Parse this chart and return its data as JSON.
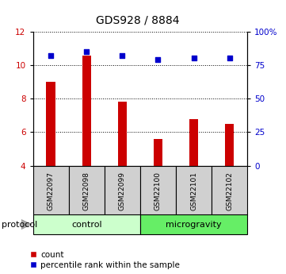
{
  "title": "GDS928 / 8884",
  "samples": [
    "GSM22097",
    "GSM22098",
    "GSM22099",
    "GSM22100",
    "GSM22101",
    "GSM22102"
  ],
  "bar_values": [
    9.0,
    10.55,
    7.8,
    5.6,
    6.8,
    6.5
  ],
  "percentile_values": [
    82,
    85,
    82,
    79,
    80,
    80
  ],
  "ylim_left": [
    4,
    12
  ],
  "yticks_left": [
    4,
    6,
    8,
    10,
    12
  ],
  "ylim_right": [
    0,
    100
  ],
  "yticks_right": [
    0,
    25,
    50,
    75,
    100
  ],
  "ytick_labels_right": [
    "0",
    "25",
    "50",
    "75",
    "100%"
  ],
  "bar_color": "#cc0000",
  "dot_color": "#0000cc",
  "group_control_color": "#ccffcc",
  "group_microgravity_color": "#66ee66",
  "sample_box_color": "#d0d0d0",
  "groups": [
    {
      "label": "control",
      "start": 0,
      "end": 3,
      "color": "#ccffcc"
    },
    {
      "label": "microgravity",
      "start": 3,
      "end": 6,
      "color": "#66ee66"
    }
  ],
  "protocol_label": "protocol",
  "legend_items": [
    {
      "label": "count",
      "color": "#cc0000"
    },
    {
      "label": "percentile rank within the sample",
      "color": "#0000cc"
    }
  ],
  "title_fontsize": 10,
  "tick_fontsize": 7.5,
  "legend_fontsize": 7.5,
  "group_fontsize": 8,
  "sample_fontsize": 6.5,
  "protocol_fontsize": 8
}
